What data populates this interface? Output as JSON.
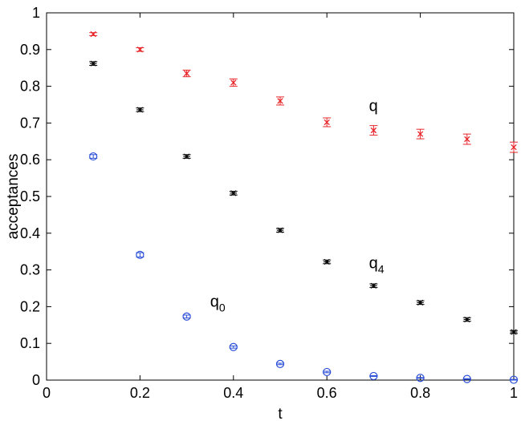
{
  "chart_data": {
    "type": "scatter",
    "title": "",
    "xlabel": "t",
    "ylabel": "acceptances",
    "xlim": [
      0,
      1
    ],
    "ylim": [
      0,
      1
    ],
    "xticks": [
      0,
      0.2,
      0.4,
      0.6,
      0.8,
      1
    ],
    "yticks": [
      0,
      0.1,
      0.2,
      0.3,
      0.4,
      0.5,
      0.6,
      0.7,
      0.8,
      0.9,
      1
    ],
    "xtick_labels": [
      "0",
      "0.2",
      "0.4",
      "0.6",
      "0.8",
      "1"
    ],
    "ytick_labels": [
      "0",
      "0.1",
      "0.2",
      "0.3",
      "0.4",
      "0.5",
      "0.6",
      "0.7",
      "0.8",
      "0.9",
      "1"
    ],
    "grid": false,
    "series": [
      {
        "marker": "x",
        "color": "#e8262a",
        "x": [
          0.1,
          0.2,
          0.3,
          0.4,
          0.5,
          0.6,
          0.7,
          0.8,
          0.9,
          1.0
        ],
        "y": [
          0.942,
          0.9,
          0.835,
          0.81,
          0.76,
          0.702,
          0.68,
          0.67,
          0.656,
          0.634
        ],
        "err": [
          0.004,
          0.005,
          0.009,
          0.01,
          0.011,
          0.012,
          0.013,
          0.013,
          0.014,
          0.014
        ]
      },
      {
        "marker": "star",
        "color": "#000000",
        "x": [
          0.1,
          0.2,
          0.3,
          0.4,
          0.5,
          0.6,
          0.7,
          0.8,
          0.9,
          1.0
        ],
        "y": [
          0.862,
          0.736,
          0.609,
          0.509,
          0.408,
          0.322,
          0.257,
          0.211,
          0.165,
          0.131
        ],
        "err": [
          0.005,
          0.005,
          0.005,
          0.005,
          0.005,
          0.005,
          0.005,
          0.005,
          0.005,
          0.004
        ]
      },
      {
        "marker": "circle",
        "color": "#2b4fd8",
        "x": [
          0.1,
          0.2,
          0.3,
          0.4,
          0.5,
          0.6,
          0.7,
          0.8,
          0.9,
          1.0
        ],
        "y": [
          0.609,
          0.341,
          0.173,
          0.09,
          0.044,
          0.022,
          0.011,
          0.006,
          0.003,
          0.001
        ],
        "err": [
          0.005,
          0.006,
          0.004,
          0.003,
          0.002,
          0.002,
          0.001,
          0.001,
          0.001,
          0.001
        ]
      }
    ],
    "annotations": [
      {
        "text": "q",
        "sub": "",
        "x": 0.69,
        "y": 0.732
      },
      {
        "text": "q",
        "sub": "4",
        "x": 0.69,
        "y": 0.305
      },
      {
        "text": "q",
        "sub": "0",
        "x": 0.35,
        "y": 0.2
      }
    ]
  }
}
